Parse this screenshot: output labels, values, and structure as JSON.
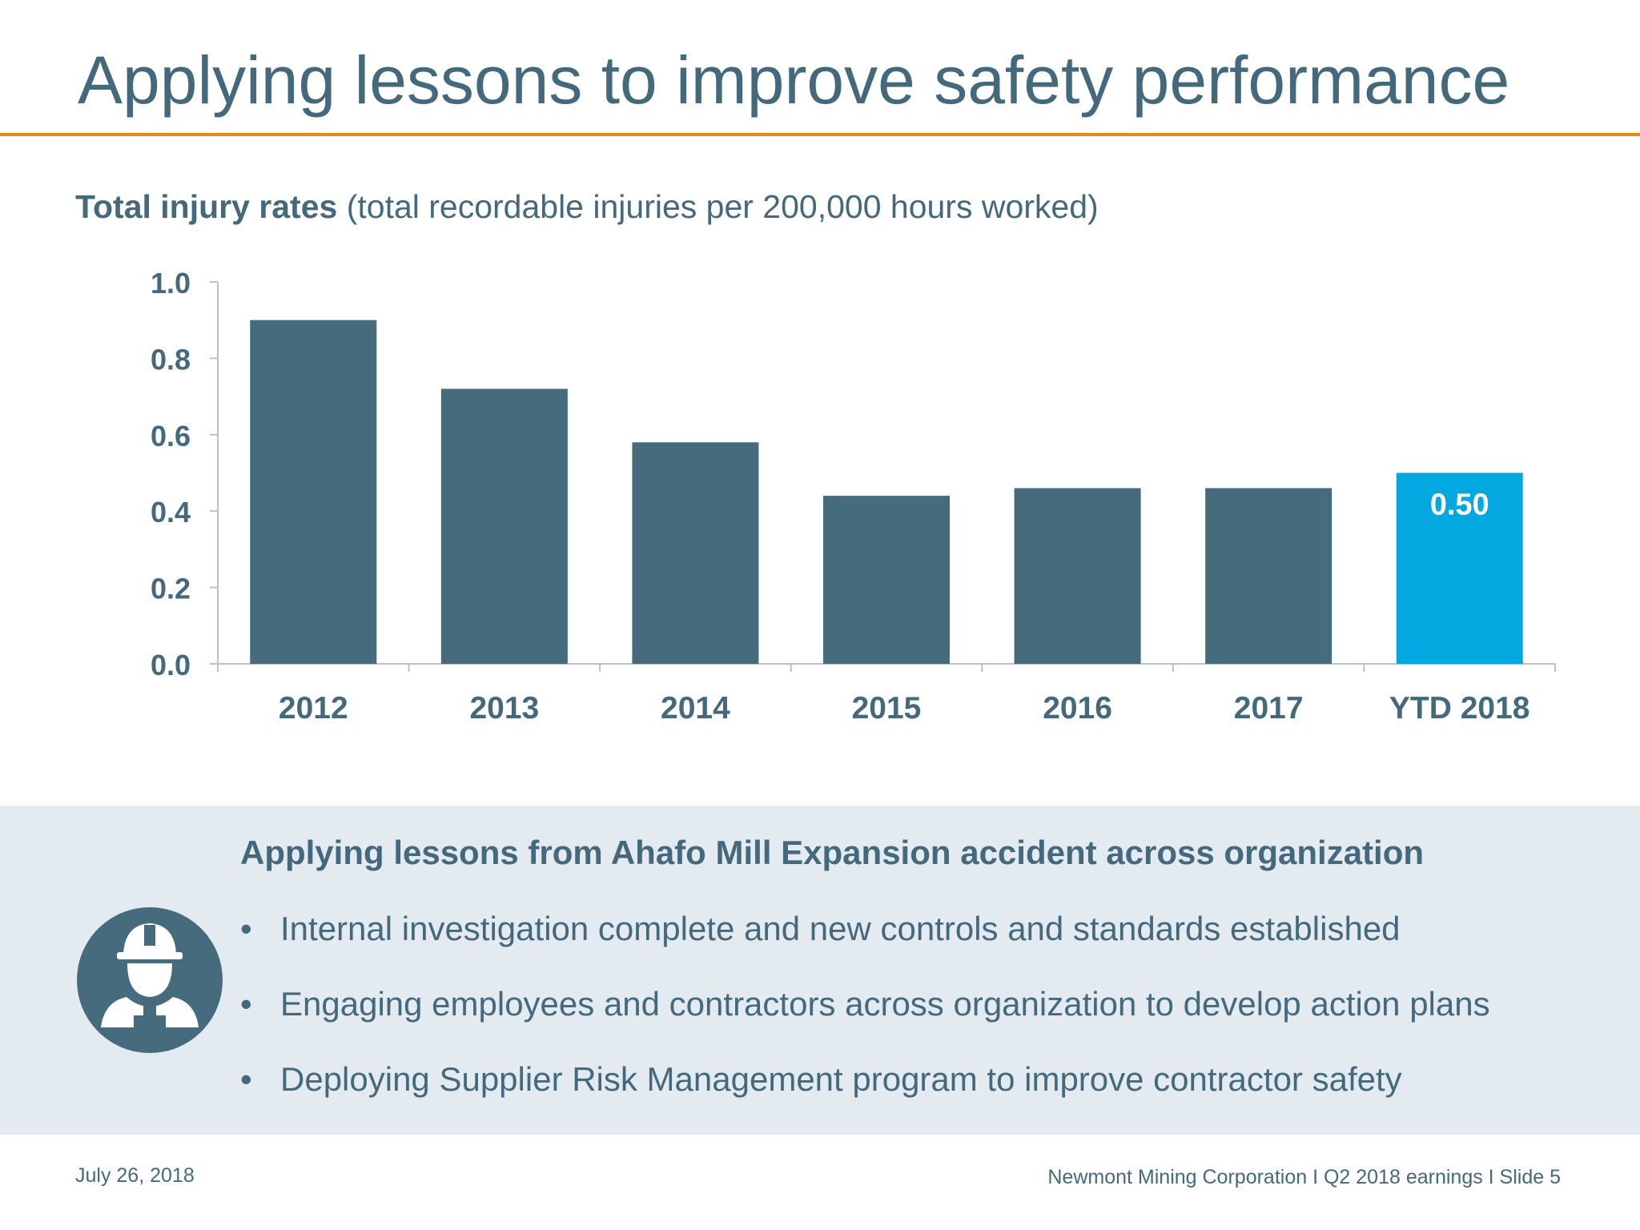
{
  "slide": {
    "title": "Applying lessons to improve safety performance",
    "accent_color": "#e3871f"
  },
  "chart_heading": {
    "bold": "Total injury rates",
    "rest": " (total recordable injuries per 200,000 hours worked)"
  },
  "chart_data": {
    "type": "bar",
    "categories": [
      "2012",
      "2013",
      "2014",
      "2015",
      "2016",
      "2017",
      "YTD 2018"
    ],
    "values": [
      0.9,
      0.72,
      0.58,
      0.44,
      0.46,
      0.46,
      0.5
    ],
    "ylim": [
      0,
      1.0
    ],
    "yticks": [
      "0.0",
      "0.2",
      "0.4",
      "0.6",
      "0.8",
      "1.0"
    ],
    "data_labels": [
      "",
      "",
      "",
      "",
      "",
      "",
      "0.50"
    ],
    "bar_color": "#456b7d",
    "highlight_color": "#04a8e1",
    "highlight_index": 6,
    "grid": false,
    "legend": "none"
  },
  "lessons": {
    "title": "Applying lessons from Ahafo Mill Expansion accident across organization",
    "icon": "safety-worker-icon",
    "bullets": [
      "Internal investigation complete and new controls and standards established",
      "Engaging employees and contractors across organization to develop action plans",
      "Deploying Supplier Risk Management program to improve contractor safety"
    ]
  },
  "footer": {
    "date": "July 26, 2018",
    "company": "Newmont Mining Corporation  I  Q2 2018 earnings  I  Slide 5"
  }
}
